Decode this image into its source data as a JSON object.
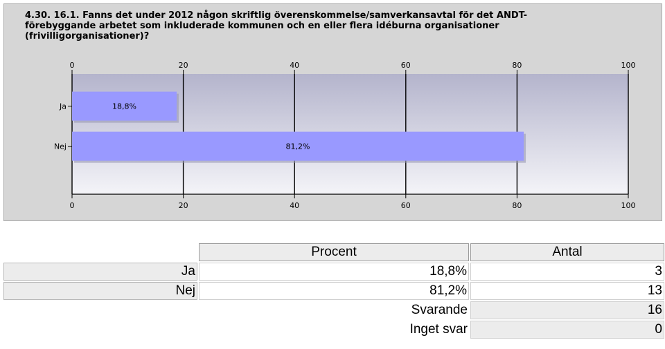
{
  "chart_data": {
    "type": "bar",
    "orientation": "horizontal",
    "title": "4.30. 16.1. Fanns det under 2012 någon skriftlig överenskommelse/samverkansavtal för det ANDT-\nförebyggande arbetet som inkluderade kommunen och en eller flera idéburna organisationer\n(frivilligorganisationer)?",
    "categories": [
      "Ja",
      "Nej"
    ],
    "values": [
      18.8,
      81.2
    ],
    "value_labels": [
      "18,8%",
      "81,2%"
    ],
    "xlim": [
      0,
      100
    ],
    "xticks": [
      0,
      20,
      40,
      60,
      80,
      100
    ],
    "xtick_labels": [
      "0",
      "20",
      "40",
      "60",
      "80",
      "100"
    ],
    "grid": true,
    "bar_color": "#9999ff",
    "plot_bg_top": "#b4b4cc",
    "plot_bg_bottom": "#f4f4f8"
  },
  "table": {
    "headers": [
      "",
      "Procent",
      "Antal"
    ],
    "rows": [
      {
        "label": "Ja",
        "procent": "18,8%",
        "antal": "3"
      },
      {
        "label": "Nej",
        "procent": "81,2%",
        "antal": "13"
      }
    ],
    "stats": [
      {
        "label": "Svarande",
        "value": "16"
      },
      {
        "label": "Inget svar",
        "value": "0"
      }
    ]
  }
}
